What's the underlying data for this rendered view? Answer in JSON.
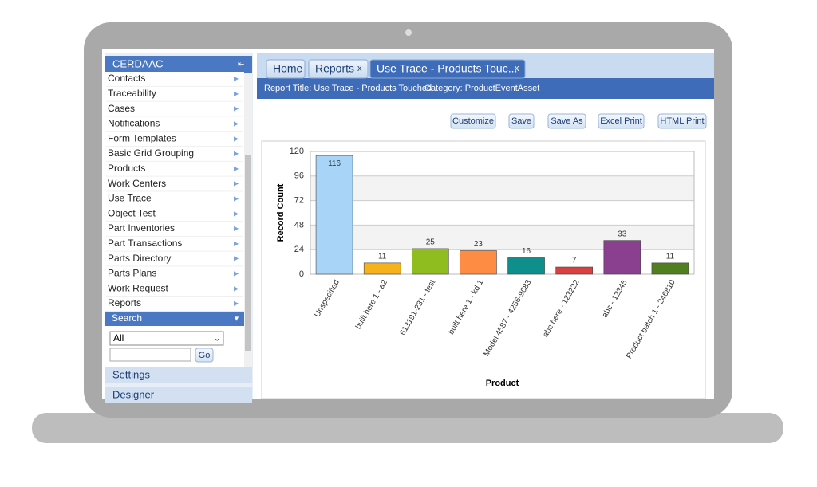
{
  "app": {
    "title": "CERDAAC"
  },
  "nav": {
    "items": [
      "Contacts",
      "Traceability",
      "Cases",
      "Notifications",
      "Form Templates",
      "Basic Grid Grouping",
      "Products",
      "Work Centers",
      "Use Trace",
      "Object Test",
      "Part Inventories",
      "Part Transactions",
      "Parts Directory",
      "Parts Plans",
      "Work Request",
      "Reports"
    ],
    "search": "Search",
    "filter": "All",
    "go": "Go",
    "sections": [
      "Settings",
      "Designer"
    ]
  },
  "tabs": [
    {
      "label": "Home"
    },
    {
      "label": "Reports",
      "close": "x"
    },
    {
      "label": "Use Trace - Products Touc...",
      "close": "x"
    }
  ],
  "report": {
    "title": "Report Title: Use Trace - Products Touched",
    "category": "Category: ProductEventAsset"
  },
  "buttons": [
    "Customize",
    "Save",
    "Save As",
    "Excel Print",
    "HTML Print"
  ],
  "chart_data": {
    "type": "bar",
    "categories": [
      "Unspecified",
      "built here 1 - a2",
      "613191-231 - test",
      "built here 1 - kd 1",
      "Model 4587 - 4256-9683",
      "abc here - 123222",
      "abc - 12345",
      "Product batch 1 - 246810"
    ],
    "values": [
      116,
      11,
      25,
      23,
      16,
      7,
      33,
      11
    ],
    "colors": [
      "#a8d4f7",
      "#f5b21b",
      "#8fbc1e",
      "#ff8c42",
      "#0e8f8b",
      "#d94040",
      "#8a3f8f",
      "#4f7f1f"
    ],
    "ylim": [
      0,
      120
    ],
    "yticks": [
      0,
      24,
      48,
      72,
      96,
      120
    ],
    "xlabel": "Product",
    "ylabel": "Record Count",
    "grid": true
  }
}
